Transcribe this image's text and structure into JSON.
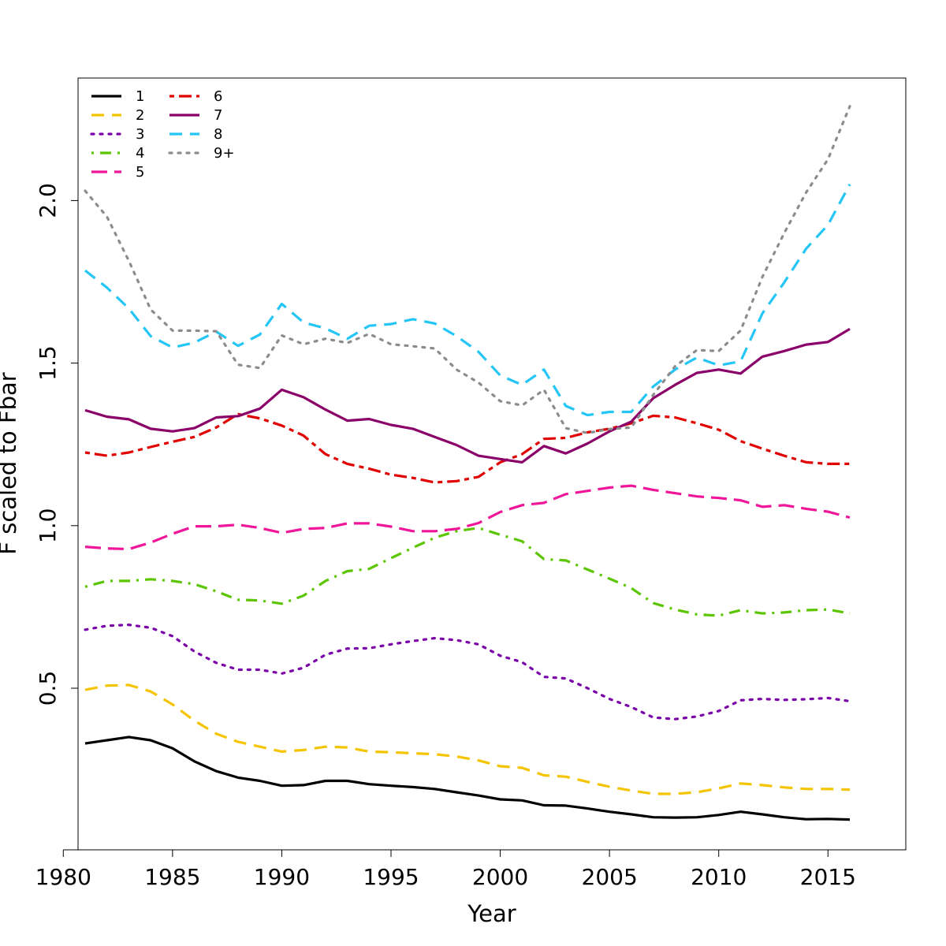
{
  "chart_data": {
    "type": "line",
    "title": "",
    "xlabel": "Year",
    "ylabel": "F scaled to Fbar",
    "xlim": [
      1980,
      2017
    ],
    "ylim": [
      0.0,
      2.36
    ],
    "x_ticks": [
      1980,
      1985,
      1990,
      1995,
      2000,
      2005,
      2010,
      2015
    ],
    "y_ticks": [
      0.5,
      1.0,
      1.5,
      2.0
    ],
    "y_tick_labels": [
      "0.5",
      "1.0",
      "1.5",
      "2.0"
    ],
    "legend_position": "top-left",
    "grid": false,
    "x": [
      1981,
      1982,
      1983,
      1984,
      1985,
      1986,
      1987,
      1988,
      1989,
      1990,
      1991,
      1992,
      1993,
      1994,
      1995,
      1996,
      1997,
      1998,
      1999,
      2000,
      2001,
      2002,
      2003,
      2004,
      2005,
      2006,
      2007,
      2008,
      2009,
      2010,
      2011,
      2012,
      2013,
      2014,
      2015,
      2016
    ],
    "series": [
      {
        "name": "1",
        "color": "#000000",
        "dash": "solid",
        "values": [
          0.33,
          0.34,
          0.35,
          0.34,
          0.315,
          0.275,
          0.245,
          0.225,
          0.215,
          0.2,
          0.202,
          0.215,
          0.215,
          0.205,
          0.2,
          0.196,
          0.19,
          0.18,
          0.17,
          0.158,
          0.155,
          0.14,
          0.139,
          0.13,
          0.12,
          0.112,
          0.103,
          0.102,
          0.103,
          0.11,
          0.12,
          0.112,
          0.103,
          0.097,
          0.098,
          0.096
        ]
      },
      {
        "name": "2",
        "color": "#F5C400",
        "dash": "dash",
        "values": [
          0.495,
          0.508,
          0.51,
          0.49,
          0.45,
          0.4,
          0.36,
          0.335,
          0.32,
          0.305,
          0.31,
          0.32,
          0.318,
          0.305,
          0.303,
          0.3,
          0.297,
          0.29,
          0.278,
          0.26,
          0.255,
          0.232,
          0.228,
          0.212,
          0.197,
          0.185,
          0.175,
          0.175,
          0.18,
          0.192,
          0.207,
          0.202,
          0.195,
          0.19,
          0.19,
          0.188
        ]
      },
      {
        "name": "3",
        "color": "#7A00A8",
        "dash": "dot",
        "values": [
          0.68,
          0.692,
          0.695,
          0.686,
          0.66,
          0.613,
          0.578,
          0.557,
          0.557,
          0.545,
          0.563,
          0.603,
          0.622,
          0.623,
          0.635,
          0.645,
          0.654,
          0.648,
          0.635,
          0.6,
          0.58,
          0.535,
          0.53,
          0.5,
          0.467,
          0.442,
          0.41,
          0.405,
          0.413,
          0.43,
          0.463,
          0.467,
          0.464,
          0.466,
          0.47,
          0.46
        ]
      },
      {
        "name": "4",
        "color": "#5BC500",
        "dash": "dashdot",
        "values": [
          0.812,
          0.83,
          0.83,
          0.835,
          0.83,
          0.82,
          0.798,
          0.772,
          0.77,
          0.76,
          0.785,
          0.83,
          0.86,
          0.867,
          0.9,
          0.932,
          0.963,
          0.983,
          0.993,
          0.972,
          0.952,
          0.897,
          0.893,
          0.865,
          0.837,
          0.808,
          0.762,
          0.742,
          0.727,
          0.723,
          0.74,
          0.73,
          0.733,
          0.74,
          0.742,
          0.73
        ]
      },
      {
        "name": "5",
        "color": "#F0169A",
        "dash": "longdash",
        "values": [
          0.935,
          0.93,
          0.928,
          0.948,
          0.975,
          0.998,
          0.998,
          1.003,
          0.993,
          0.978,
          0.99,
          0.993,
          1.007,
          1.007,
          0.997,
          0.983,
          0.983,
          0.99,
          1.008,
          1.042,
          1.063,
          1.07,
          1.097,
          1.107,
          1.117,
          1.123,
          1.11,
          1.1,
          1.09,
          1.085,
          1.078,
          1.058,
          1.063,
          1.052,
          1.043,
          1.025
        ]
      },
      {
        "name": "6",
        "color": "#E00000",
        "dash": "twodash",
        "values": [
          1.225,
          1.215,
          1.225,
          1.242,
          1.258,
          1.273,
          1.302,
          1.343,
          1.33,
          1.308,
          1.277,
          1.22,
          1.19,
          1.175,
          1.157,
          1.147,
          1.133,
          1.137,
          1.15,
          1.195,
          1.22,
          1.267,
          1.27,
          1.287,
          1.298,
          1.315,
          1.338,
          1.333,
          1.315,
          1.295,
          1.26,
          1.237,
          1.215,
          1.195,
          1.19,
          1.19
        ]
      },
      {
        "name": "7",
        "color": "#8B0068",
        "dash": "solid",
        "values": [
          1.355,
          1.335,
          1.327,
          1.298,
          1.29,
          1.3,
          1.333,
          1.337,
          1.36,
          1.418,
          1.395,
          1.357,
          1.323,
          1.328,
          1.31,
          1.298,
          1.273,
          1.248,
          1.215,
          1.205,
          1.195,
          1.245,
          1.222,
          1.253,
          1.29,
          1.32,
          1.392,
          1.433,
          1.47,
          1.48,
          1.468,
          1.52,
          1.537,
          1.557,
          1.565,
          1.605
        ]
      },
      {
        "name": "8",
        "color": "#25C6F5",
        "dash": "dash",
        "values": [
          1.785,
          1.732,
          1.668,
          1.583,
          1.548,
          1.563,
          1.597,
          1.553,
          1.588,
          1.682,
          1.625,
          1.607,
          1.575,
          1.615,
          1.62,
          1.635,
          1.622,
          1.583,
          1.535,
          1.462,
          1.433,
          1.48,
          1.368,
          1.34,
          1.35,
          1.35,
          1.428,
          1.48,
          1.517,
          1.493,
          1.505,
          1.653,
          1.748,
          1.852,
          1.925,
          2.05
        ]
      },
      {
        "name": "9+",
        "color": "#8C8C8C",
        "dash": "dot",
        "values": [
          2.03,
          1.95,
          1.815,
          1.665,
          1.6,
          1.6,
          1.598,
          1.495,
          1.485,
          1.585,
          1.558,
          1.575,
          1.562,
          1.59,
          1.558,
          1.552,
          1.545,
          1.48,
          1.44,
          1.383,
          1.37,
          1.418,
          1.3,
          1.285,
          1.297,
          1.302,
          1.402,
          1.49,
          1.54,
          1.537,
          1.6,
          1.765,
          1.9,
          2.025,
          2.127,
          2.29
        ]
      }
    ]
  }
}
